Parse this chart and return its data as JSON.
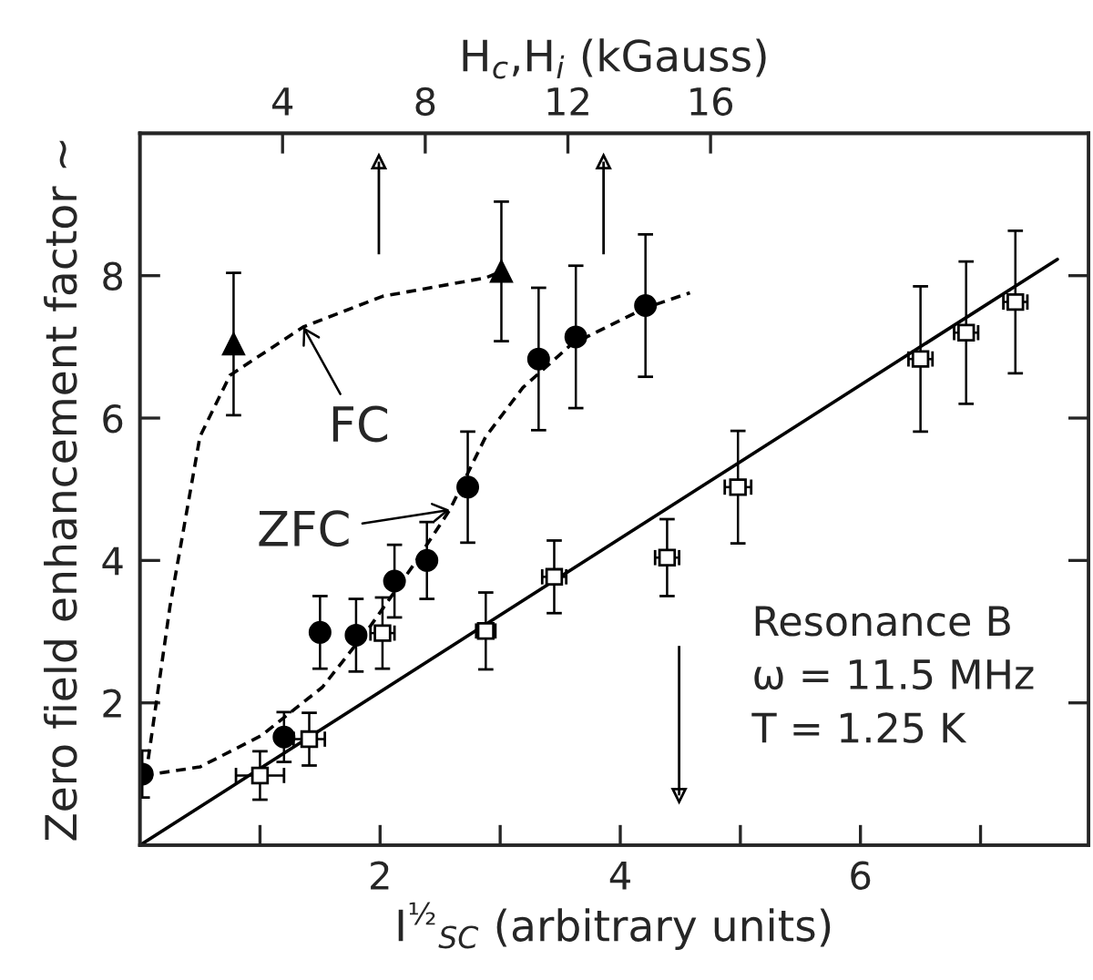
{
  "chart_data": {
    "type": "scatter",
    "xlabel": "I$^{½}$$_{SC}$ (arbitrary units)",
    "ylabel": "Zero field enhancement factor ~",
    "x2label": "H$_{c}$,H$_{i}$ (kGauss)",
    "xlim": [
      0,
      7.9
    ],
    "xticks": [
      {
        "value": 1,
        "label": null
      },
      2,
      {
        "value": 3,
        "label": null
      },
      4,
      {
        "value": 5,
        "label": null
      },
      6,
      {
        "value": 7,
        "label": null
      }
    ],
    "ylim": [
      0,
      10
    ],
    "yticks": [
      2,
      4,
      6,
      8
    ],
    "x2lim": [
      0,
      26.6
    ],
    "x2ticks": [
      4,
      8,
      12,
      16
    ],
    "series": [
      {
        "marker": "circle",
        "color": "#000000",
        "x": [
          0.02,
          1.2,
          1.5,
          1.8,
          2.12,
          2.39,
          2.73,
          3.32,
          3.63,
          4.21
        ],
        "values": [
          1.0,
          1.52,
          2.99,
          2.95,
          3.71,
          4.0,
          5.03,
          6.83,
          7.14,
          7.58
        ],
        "errors": [
          0.33,
          0.35,
          0.51,
          0.51,
          0.51,
          0.54,
          0.78,
          1.0,
          1.0,
          1.0
        ]
      },
      {
        "marker": "triangle",
        "color": "#000000",
        "x": [
          0.78,
          3.01
        ],
        "values": [
          7.04,
          8.06
        ],
        "errors": [
          1.0,
          0.98
        ]
      },
      {
        "marker": "square",
        "color": "#000000",
        "x": [
          1.0,
          1.41,
          2.02,
          2.88,
          3.45,
          4.39,
          4.98,
          6.5,
          6.88,
          7.29
        ],
        "values": [
          0.98,
          1.49,
          2.98,
          3.01,
          3.77,
          4.04,
          5.03,
          6.83,
          7.2,
          7.63
        ],
        "errors": [
          0.34,
          0.37,
          0.5,
          0.54,
          0.51,
          0.54,
          0.79,
          1.02,
          1.0,
          1.0
        ],
        "xerrors": [
          0.2,
          0.13,
          0.1,
          0.08,
          0.1,
          0.1,
          0.11,
          0.1,
          0.1,
          0.1
        ]
      },
      {
        "type": "line",
        "line_style": "solid",
        "color": "#000000",
        "x": [
          0,
          7.64
        ],
        "values": [
          0,
          8.23
        ]
      },
      {
        "type": "line",
        "line_style": "dashed",
        "color": "#000000",
        "x": [
          0.02,
          0.06,
          0.25,
          0.5,
          0.75,
          1.36,
          2.02,
          2.88,
          3.01
        ],
        "values": [
          1.0,
          1.1,
          3.35,
          5.74,
          6.6,
          7.28,
          7.71,
          7.97,
          8.06
        ]
      },
      {
        "type": "line",
        "line_style": "dashed",
        "color": "#000000",
        "x": [
          0.03,
          0.5,
          1.01,
          1.52,
          1.92,
          2.28,
          2.58,
          2.88,
          3.19,
          3.59,
          4.2,
          4.58
        ],
        "values": [
          0.98,
          1.1,
          1.54,
          2.22,
          3.08,
          3.94,
          4.71,
          5.74,
          6.43,
          7.03,
          7.54,
          7.76
        ]
      }
    ],
    "ref_lines": [
      {
        "axis": "x2",
        "value": 6.7
      },
      {
        "axis": "x2",
        "value": 13.0
      },
      {
        "axis": "x",
        "value": 4.49
      }
    ],
    "annotations": [
      {
        "text": "FC",
        "x": 1.36,
        "y": 7.28
      },
      {
        "text": "ZFC",
        "x": 2.58,
        "y": 4.71
      },
      "Resonance B",
      "ω = 11.5 MHz",
      "T = 1.25 K"
    ]
  }
}
